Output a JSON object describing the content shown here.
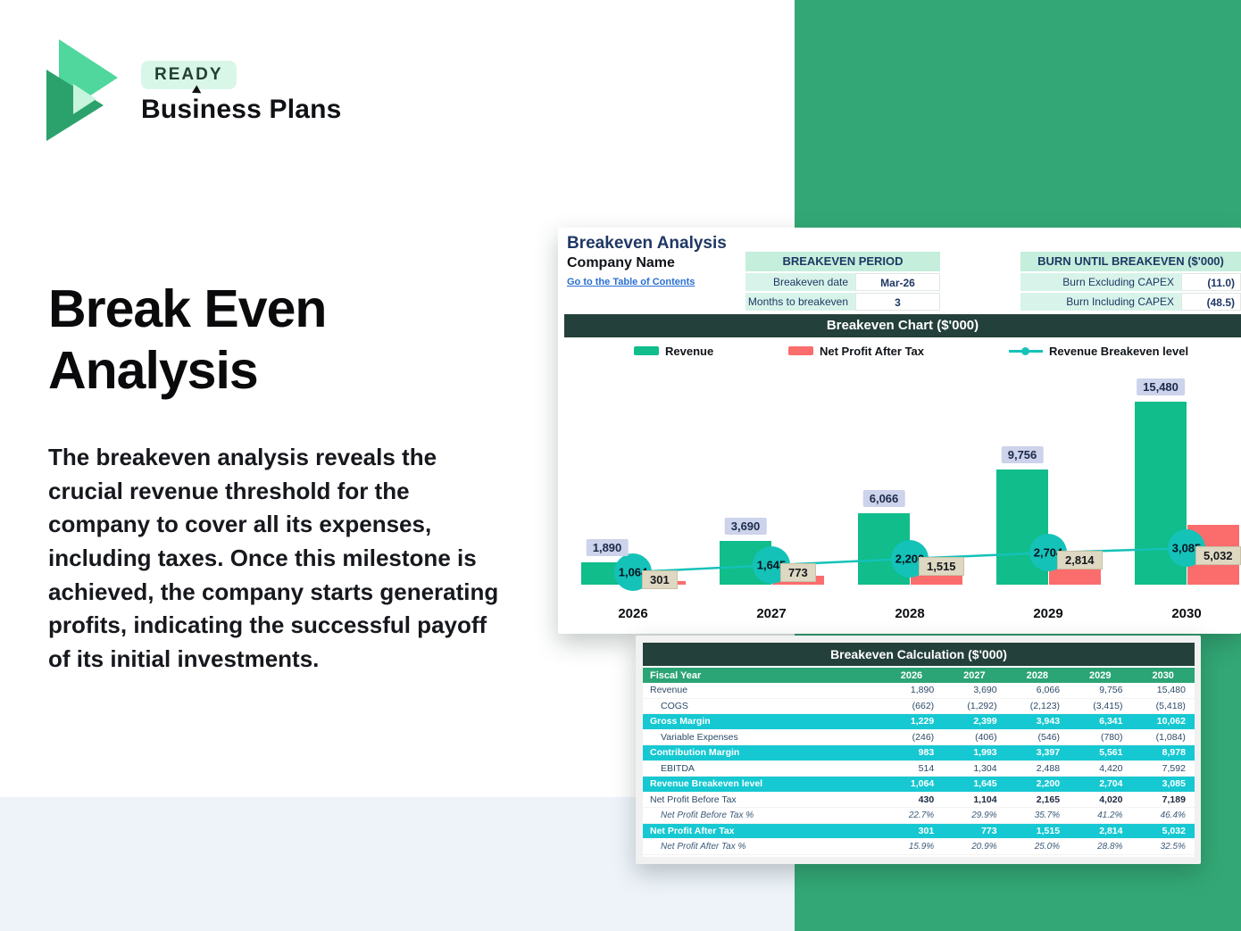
{
  "brand": {
    "badge": "READY",
    "name": "Business Plans"
  },
  "hero": {
    "title": "Break Even Analysis",
    "paragraph": "The breakeven analysis reveals the crucial revenue threshold for the company to cover all its expenses, including taxes. Once this milestone is achieved, the company starts generating profits, indicating the successful payoff of its initial investments."
  },
  "sheet": {
    "title": "Breakeven Analysis",
    "company": "Company Name",
    "link": "Go to the Table of Contents",
    "breakeven_period": {
      "title": "BREAKEVEN PERIOD",
      "rows": [
        {
          "label": "Breakeven date",
          "value": "Mar-26"
        },
        {
          "label": "Months to breakeven",
          "value": "3"
        }
      ]
    },
    "burn": {
      "title": "BURN UNTIL BREAKEVEN ($'000)",
      "rows": [
        {
          "label": "Burn Excluding CAPEX",
          "value": "(11.0)"
        },
        {
          "label": "Burn Including CAPEX",
          "value": "(48.5)"
        }
      ]
    }
  },
  "chart_data": {
    "type": "bar",
    "title": "Breakeven Chart ($'000)",
    "categories": [
      "2026",
      "2027",
      "2028",
      "2029",
      "2030"
    ],
    "series": [
      {
        "name": "Revenue",
        "type": "bar",
        "color": "#10bd8b",
        "values": [
          1890,
          3690,
          6066,
          9756,
          15480
        ],
        "labels": [
          "1,890",
          "3,690",
          "6,066",
          "9,756",
          "15,480"
        ]
      },
      {
        "name": "Net Profit After Tax",
        "type": "bar",
        "color": "#fb6c6c",
        "values": [
          301,
          773,
          1515,
          2814,
          5032
        ],
        "labels": [
          "301",
          "773",
          "1,515",
          "2,814",
          "5,032"
        ]
      },
      {
        "name": "Revenue Breakeven level",
        "type": "line",
        "color": "#14c2b8",
        "values": [
          1064,
          1645,
          2200,
          2704,
          3085
        ],
        "labels": [
          "1,064",
          "1,645",
          "2,200",
          "2,704",
          "3,085"
        ]
      }
    ],
    "ylim": [
      0,
      16000
    ],
    "gridlines": false,
    "legend_position": "top"
  },
  "calc_table": {
    "title": "Breakeven Calculation ($'000)",
    "header": {
      "label": "Fiscal Year",
      "years": [
        "2026",
        "2027",
        "2028",
        "2029",
        "2030"
      ]
    },
    "rows": [
      {
        "label": "Revenue",
        "style": "plain",
        "values": [
          "1,890",
          "3,690",
          "6,066",
          "9,756",
          "15,480"
        ]
      },
      {
        "label": "COGS",
        "style": "indent",
        "values": [
          "(662)",
          "(1,292)",
          "(2,123)",
          "(3,415)",
          "(5,418)"
        ]
      },
      {
        "label": "Gross Margin",
        "style": "highlight",
        "values": [
          "1,229",
          "2,399",
          "3,943",
          "6,341",
          "10,062"
        ]
      },
      {
        "label": "Variable Expenses",
        "style": "indent",
        "values": [
          "(246)",
          "(406)",
          "(546)",
          "(780)",
          "(1,084)"
        ]
      },
      {
        "label": "Contribution Margin",
        "style": "highlight",
        "values": [
          "983",
          "1,993",
          "3,397",
          "5,561",
          "8,978"
        ]
      },
      {
        "label": "EBITDA",
        "style": "indent",
        "values": [
          "514",
          "1,304",
          "2,488",
          "4,420",
          "7,592"
        ]
      },
      {
        "label": "Revenue Breakeven level",
        "style": "highlight",
        "values": [
          "1,064",
          "1,645",
          "2,200",
          "2,704",
          "3,085"
        ]
      },
      {
        "label": "Net Profit Before Tax",
        "style": "bold",
        "values": [
          "430",
          "1,104",
          "2,165",
          "4,020",
          "7,189"
        ]
      },
      {
        "label": "Net Profit Before Tax %",
        "style": "pct",
        "values": [
          "22.7%",
          "29.9%",
          "35.7%",
          "41.2%",
          "46.4%"
        ]
      },
      {
        "label": "Net Profit After Tax",
        "style": "highlight",
        "values": [
          "301",
          "773",
          "1,515",
          "2,814",
          "5,032"
        ]
      },
      {
        "label": "Net Profit After Tax %",
        "style": "pct",
        "values": [
          "15.9%",
          "20.9%",
          "25.0%",
          "28.8%",
          "32.5%"
        ]
      }
    ]
  },
  "colors": {
    "panel_green": "#33a876",
    "dark_header": "#24403b",
    "mint_header": "#c5eedd",
    "mint_cell": "#d8f4ea",
    "navy": "#1f3864",
    "link_blue": "#2a6fd3",
    "revenue_green": "#10bd8b",
    "net_profit_red": "#fb6c6c",
    "breakeven_teal": "#14c2b8",
    "highlight_cyan": "#16c8d2",
    "table_header_green": "#2ba476",
    "revenue_label_bg": "#ccd3ea",
    "net_profit_label_bg": "#ded8c2"
  }
}
